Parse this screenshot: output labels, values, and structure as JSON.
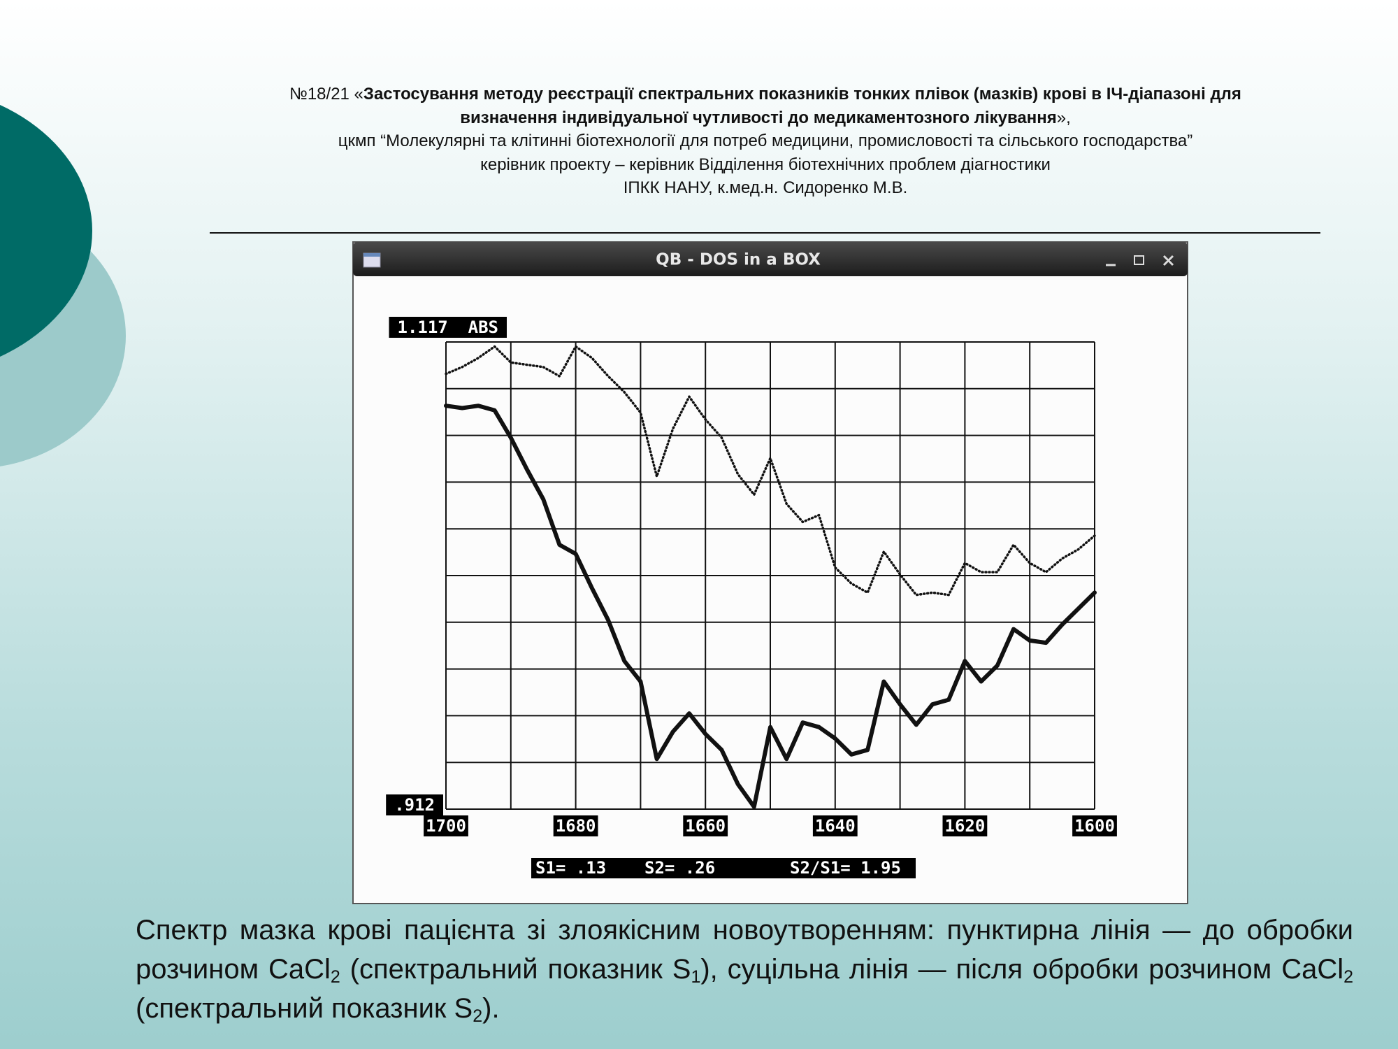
{
  "header": {
    "line1": [
      "№18/21 «",
      "Застосування методу реєстрації спектральних показників тонких плівок (мазків) крові в ІЧ-діапазоні для",
      "визначення індивідуальної чутливості до медикаментозного лікування",
      "»,"
    ],
    "line2": "цкмп “Молекулярні та клітинні біотехнології для потреб медицини, промисловості та сільського господарства”",
    "line3": "керівник проекту – керівник Відділення біотехнічних проблем діагностики",
    "line4": "ІПКК НАНУ, к.мед.н. Сидоренко М.В."
  },
  "window_title": "QB - DOS in a BOX",
  "chart_data": {
    "type": "line",
    "x": [
      1700,
      1697.5,
      1695,
      1692.5,
      1690,
      1687.5,
      1685,
      1682.5,
      1680,
      1677.5,
      1675,
      1672.5,
      1670,
      1667.5,
      1665,
      1662.5,
      1660,
      1657.5,
      1655,
      1652.5,
      1650,
      1647.5,
      1645,
      1642.5,
      1640,
      1637.5,
      1635,
      1632.5,
      1630,
      1627.5,
      1625,
      1622.5,
      1620,
      1617.5,
      1615,
      1612.5,
      1610,
      1607.5,
      1605,
      1602.5,
      1600
    ],
    "series": [
      {
        "color": "#111111",
        "style": "dotted",
        "values": [
          1.103,
          1.106,
          1.11,
          1.115,
          1.108,
          1.107,
          1.106,
          1.102,
          1.115,
          1.11,
          1.102,
          1.095,
          1.086,
          1.058,
          1.079,
          1.093,
          1.083,
          1.075,
          1.059,
          1.05,
          1.066,
          1.046,
          1.038,
          1.041,
          1.018,
          1.011,
          1.007,
          1.025,
          1.015,
          1.006,
          1.007,
          1.006,
          1.02,
          1.016,
          1.016,
          1.028,
          1.02,
          1.016,
          1.022,
          1.026,
          1.032
        ]
      },
      {
        "color": "#111111",
        "style": "solid",
        "values": [
          1.089,
          1.088,
          1.089,
          1.087,
          1.075,
          1.061,
          1.048,
          1.028,
          1.024,
          1.009,
          0.995,
          0.977,
          0.968,
          0.934,
          0.946,
          0.954,
          0.945,
          0.938,
          0.923,
          0.913,
          0.948,
          0.934,
          0.95,
          0.948,
          0.943,
          0.936,
          0.938,
          0.968,
          0.958,
          0.949,
          0.958,
          0.96,
          0.977,
          0.968,
          0.975,
          0.991,
          0.986,
          0.985,
          0.993,
          1.0,
          1.007
        ]
      }
    ],
    "xlim": [
      1700,
      1600
    ],
    "ylim": [
      0.912,
      1.117
    ],
    "xticks": [
      1700,
      1680,
      1660,
      1640,
      1620,
      1600
    ],
    "yticks": [
      {
        "value": 1.117,
        "label": "1.117  ABS"
      },
      {
        "value": 0.912,
        "label": ".912"
      }
    ],
    "grid": {
      "x_divisions": 10,
      "y_divisions": 10
    },
    "stats": [
      "S1= .13",
      "S2= .26",
      "S2/S1= 1.95"
    ]
  },
  "caption": {
    "parts": [
      "Спектр мазка крові пацієнта зі злоякісним новоутворенням: пунктирна лінія — до обробки розчином CaCl",
      "2",
      " (спектральний показник S",
      "1",
      "), суцільна лінія — після обробки розчином CaCl",
      "2",
      " (спектральний показник S",
      "2",
      ")."
    ]
  }
}
